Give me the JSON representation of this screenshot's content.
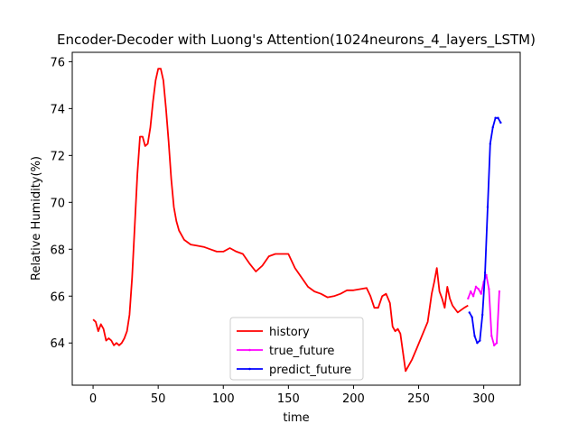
{
  "chart_data": {
    "type": "line",
    "title": "Encoder-Decoder with Luong's Attention(1024neurons_4_layers_LSTM)",
    "xlabel": "time",
    "ylabel": "Relative Humidity(%)",
    "xlim": [
      -16,
      328
    ],
    "ylim": [
      62.2,
      76.4
    ],
    "xticks": [
      0,
      50,
      100,
      150,
      200,
      250,
      300
    ],
    "yticks": [
      64,
      66,
      68,
      70,
      72,
      74,
      76
    ],
    "grid": false,
    "legend_position": "lower center",
    "series": [
      {
        "name": "history",
        "color": "#ff0000",
        "marker": false,
        "x": [
          0,
          2,
          4,
          6,
          8,
          10,
          12,
          14,
          16,
          18,
          20,
          22,
          24,
          26,
          28,
          30,
          32,
          34,
          36,
          38,
          40,
          42,
          44,
          46,
          48,
          50,
          52,
          54,
          56,
          58,
          60,
          62,
          64,
          66,
          68,
          70,
          75,
          80,
          85,
          90,
          95,
          100,
          105,
          110,
          115,
          120,
          125,
          130,
          135,
          140,
          145,
          150,
          155,
          160,
          165,
          170,
          175,
          180,
          185,
          190,
          195,
          200,
          205,
          210,
          213,
          216,
          219,
          222,
          225,
          228,
          230,
          232,
          234,
          236,
          238,
          240,
          242,
          245,
          248,
          251,
          254,
          257,
          260,
          262,
          264,
          266,
          268,
          270,
          272,
          274,
          276,
          280,
          285,
          288
        ],
        "y": [
          65.0,
          64.9,
          64.5,
          64.8,
          64.6,
          64.1,
          64.2,
          64.1,
          63.9,
          64.0,
          63.9,
          64.0,
          64.2,
          64.5,
          65.2,
          66.8,
          69.0,
          71.2,
          72.8,
          72.8,
          72.4,
          72.5,
          73.2,
          74.3,
          75.2,
          75.7,
          75.7,
          75.2,
          74.0,
          72.6,
          71.0,
          69.8,
          69.2,
          68.8,
          68.6,
          68.4,
          68.2,
          68.15,
          68.1,
          68.0,
          67.9,
          67.9,
          68.05,
          67.9,
          67.8,
          67.4,
          67.05,
          67.3,
          67.7,
          67.8,
          67.8,
          67.8,
          67.2,
          66.8,
          66.4,
          66.2,
          66.1,
          65.95,
          66.0,
          66.1,
          66.25,
          66.25,
          66.3,
          66.35,
          66.0,
          65.5,
          65.5,
          66.0,
          66.1,
          65.7,
          64.7,
          64.5,
          64.6,
          64.4,
          63.6,
          62.8,
          63.0,
          63.3,
          63.7,
          64.1,
          64.5,
          64.9,
          66.1,
          66.6,
          67.2,
          66.2,
          65.9,
          65.5,
          66.4,
          65.9,
          65.6,
          65.3,
          65.5,
          65.6
        ]
      },
      {
        "name": "true_future",
        "color": "#ff00ff",
        "marker": true,
        "x": [
          288,
          290,
          292,
          294,
          296,
          298,
          300,
          302,
          304,
          306,
          308,
          310,
          312
        ],
        "y": [
          65.9,
          66.2,
          66.0,
          66.4,
          66.3,
          66.1,
          66.6,
          66.9,
          66.3,
          64.3,
          63.9,
          64.0,
          66.2
        ]
      },
      {
        "name": "predict_future",
        "color": "#0000ff",
        "marker": true,
        "x": [
          289,
          291,
          293,
          295,
          297,
          299,
          301,
          303,
          305,
          307,
          309,
          311,
          313
        ],
        "y": [
          65.3,
          65.1,
          64.3,
          64.0,
          64.1,
          65.2,
          67.0,
          69.8,
          72.5,
          73.2,
          73.6,
          73.6,
          73.4
        ]
      }
    ]
  }
}
